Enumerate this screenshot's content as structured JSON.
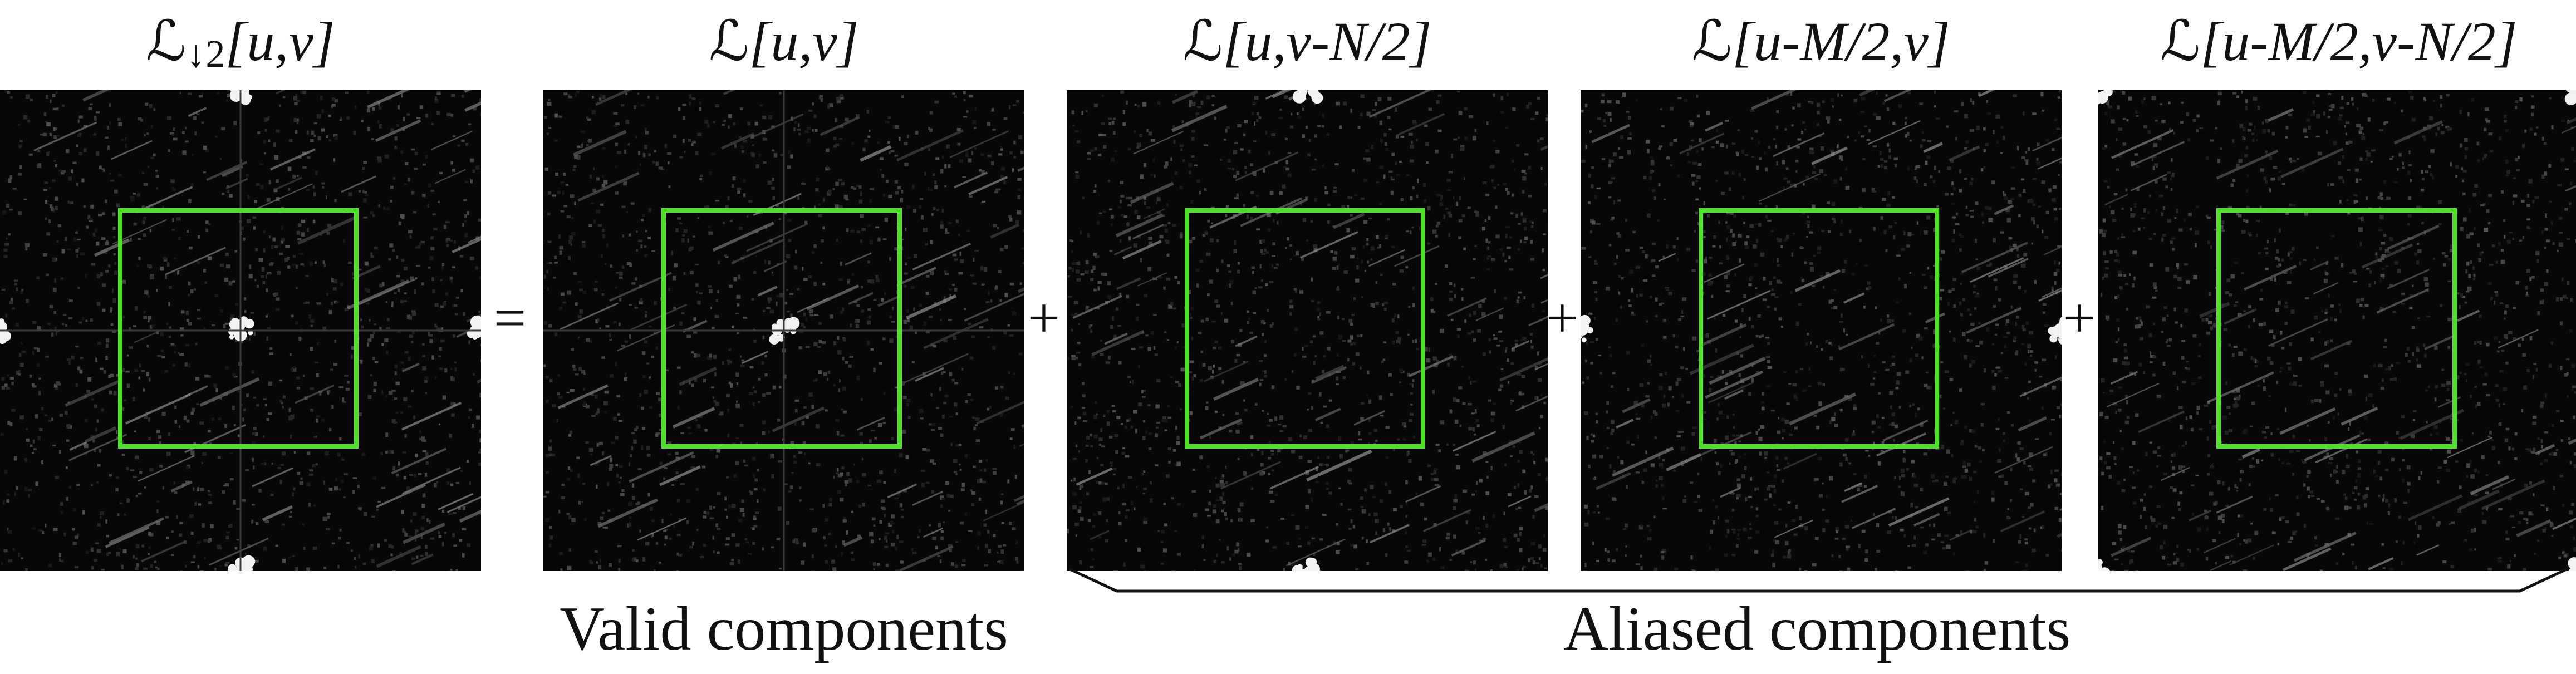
{
  "panels": [
    {
      "title": {
        "prefix": "ℒ",
        "subscript": "↓2",
        "args": "[u,v]"
      },
      "icon": "aliased-spectrum-image"
    },
    {
      "title": {
        "prefix": "ℒ",
        "args": "[u,v]"
      },
      "icon": "valid-spectrum-image"
    },
    {
      "title": {
        "prefix": "ℒ",
        "args": "[u,v-N/2]"
      },
      "icon": "shifted-v-spectrum-image"
    },
    {
      "title": {
        "prefix": "ℒ",
        "args": "[u-M/2,v]"
      },
      "icon": "shifted-u-spectrum-image"
    },
    {
      "title": {
        "prefix": "ℒ",
        "args": "[u-M/2,v-N/2]"
      },
      "icon": "shifted-uv-spectrum-image"
    }
  ],
  "operators": [
    "=",
    "+",
    "+",
    "+"
  ],
  "captions": {
    "valid": "Valid components",
    "aliased": "Aliased components"
  },
  "colors": {
    "box": "#4fe12a",
    "background": "#070707"
  }
}
